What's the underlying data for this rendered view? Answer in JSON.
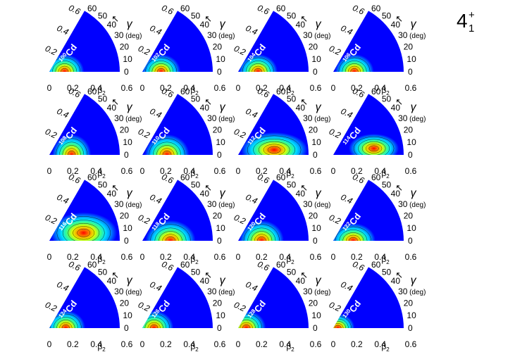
{
  "state": {
    "main": "4",
    "sup": "+",
    "sub": "1"
  },
  "axis_text": {
    "beta_base": "β",
    "beta_sub": "2",
    "gamma": "γ",
    "gamma_unit": "(deg)",
    "arrow": "↖",
    "beta_ticks": [
      "0",
      "0.2",
      "0.4",
      "0.6"
    ],
    "diag_ticks": [
      "0.2",
      "0.4",
      "0.6"
    ],
    "gamma_ticks": [
      "0",
      "10",
      "20",
      "30",
      "40",
      "50",
      "60"
    ]
  },
  "chart_data": {
    "type": "heatmap",
    "coordinate_system": "polar beta-gamma plane",
    "x_range": [
      0,
      0.6
    ],
    "gamma_range_deg": [
      0,
      60
    ],
    "colorscale": [
      "#0000ff",
      "#0080ff",
      "#00e0ff",
      "#40ff80",
      "#e0ff00",
      "#ff9000",
      "#ff0000"
    ],
    "panels": [
      {
        "nucleus_mass": "100",
        "symbol": "Cd",
        "peak_beta": 0.13,
        "peak_gamma": 0,
        "spread_beta": 0.07,
        "spread_gamma": 0.06
      },
      {
        "nucleus_mass": "102",
        "symbol": "Cd",
        "peak_beta": 0.16,
        "peak_gamma": 0,
        "spread_beta": 0.07,
        "spread_gamma": 0.06
      },
      {
        "nucleus_mass": "104",
        "symbol": "Cd",
        "peak_beta": 0.17,
        "peak_gamma": 0,
        "spread_beta": 0.07,
        "spread_gamma": 0.06
      },
      {
        "nucleus_mass": "106",
        "symbol": "Cd",
        "peak_beta": 0.18,
        "peak_gamma": 0,
        "spread_beta": 0.07,
        "spread_gamma": 0.06
      },
      {
        "nucleus_mass": "108",
        "symbol": "Cd",
        "peak_beta": 0.19,
        "peak_gamma": 0,
        "spread_beta": 0.07,
        "spread_gamma": 0.07
      },
      {
        "nucleus_mass": "110",
        "symbol": "Cd",
        "peak_beta": 0.21,
        "peak_gamma": 0,
        "spread_beta": 0.08,
        "spread_gamma": 0.07
      },
      {
        "nucleus_mass": "112",
        "symbol": "Cd",
        "peak_beta": 0.31,
        "peak_gamma": 8,
        "spread_beta": 0.12,
        "spread_gamma": 0.06
      },
      {
        "nucleus_mass": "114",
        "symbol": "Cd",
        "peak_beta": 0.35,
        "peak_gamma": 9,
        "spread_beta": 0.09,
        "spread_gamma": 0.05
      },
      {
        "nucleus_mass": "116",
        "symbol": "Cd",
        "peak_beta": 0.3,
        "peak_gamma": 13,
        "spread_beta": 0.12,
        "spread_gamma": 0.07
      },
      {
        "nucleus_mass": "118",
        "symbol": "Cd",
        "peak_beta": 0.24,
        "peak_gamma": 0,
        "spread_beta": 0.09,
        "spread_gamma": 0.07
      },
      {
        "nucleus_mass": "120",
        "symbol": "Cd",
        "peak_beta": 0.2,
        "peak_gamma": 0,
        "spread_beta": 0.08,
        "spread_gamma": 0.07
      },
      {
        "nucleus_mass": "122",
        "symbol": "Cd",
        "peak_beta": 0.17,
        "peak_gamma": 0,
        "spread_beta": 0.08,
        "spread_gamma": 0.06
      },
      {
        "nucleus_mass": "124",
        "symbol": "Cd",
        "peak_beta": 0.14,
        "peak_gamma": 0,
        "spread_beta": 0.07,
        "spread_gamma": 0.06
      },
      {
        "nucleus_mass": "126",
        "symbol": "Cd",
        "peak_beta": 0.1,
        "peak_gamma": 0,
        "spread_beta": 0.07,
        "spread_gamma": 0.06
      },
      {
        "nucleus_mass": "128",
        "symbol": "Cd",
        "peak_beta": 0.07,
        "peak_gamma": 0,
        "spread_beta": 0.07,
        "spread_gamma": 0.06
      },
      {
        "nucleus_mass": "130",
        "symbol": "Cd",
        "peak_beta": 0.04,
        "peak_gamma": 0,
        "spread_beta": 0.06,
        "spread_gamma": 0.05
      }
    ]
  }
}
